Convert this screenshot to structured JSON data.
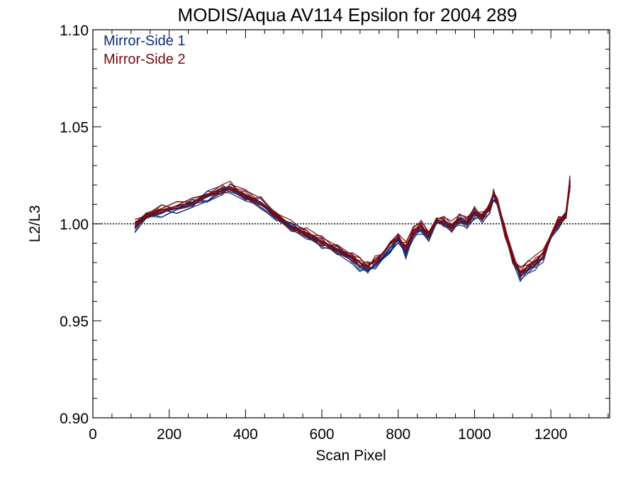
{
  "chart_data": {
    "type": "line",
    "title": "MODIS/Aqua AV114 Epsilon for 2004 289",
    "xlabel": "Scan Pixel",
    "ylabel": "L2/L3",
    "xlim": [
      0,
      1354
    ],
    "ylim": [
      0.9,
      1.1
    ],
    "x_ticks": [
      0,
      200,
      400,
      600,
      800,
      1000,
      1200
    ],
    "x_tick_labels": [
      "0",
      "200",
      "400",
      "600",
      "800",
      "1000",
      "1200"
    ],
    "y_ticks": [
      0.9,
      0.95,
      1.0,
      1.05,
      1.1
    ],
    "y_tick_labels": [
      "0.90",
      "0.95",
      "1.00",
      "1.05",
      "1.10"
    ],
    "reference_line": {
      "y": 1.0,
      "style": "dotted"
    },
    "legend_position": "top-left",
    "colors": {
      "mirror_side_1": "#0a2d78",
      "mirror_side_2": "#780a0f"
    },
    "series": [
      {
        "name": "Mirror-Side 1",
        "color": "#0a2d78",
        "x": [
          110,
          140,
          180,
          220,
          260,
          300,
          340,
          360,
          400,
          440,
          480,
          520,
          560,
          600,
          640,
          680,
          700,
          720,
          740,
          760,
          780,
          800,
          820,
          840,
          860,
          880,
          900,
          920,
          940,
          960,
          980,
          1000,
          1020,
          1040,
          1050,
          1060,
          1080,
          1100,
          1120,
          1140,
          1160,
          1180,
          1200,
          1220,
          1240,
          1250
        ],
        "values": [
          0.998,
          1.003,
          1.006,
          1.008,
          1.01,
          1.014,
          1.017,
          1.018,
          1.014,
          1.01,
          1.004,
          0.998,
          0.994,
          0.99,
          0.986,
          0.982,
          0.978,
          0.976,
          0.979,
          0.983,
          0.988,
          0.992,
          0.985,
          0.995,
          0.997,
          0.993,
          1.001,
          1.0,
          0.998,
          1.002,
          1.0,
          1.005,
          1.003,
          1.008,
          1.015,
          1.01,
          0.995,
          0.982,
          0.973,
          0.976,
          0.979,
          0.983,
          0.993,
          1.0,
          1.005,
          1.02
        ]
      },
      {
        "name": "Mirror-Side 2",
        "color": "#780a0f",
        "x": [
          110,
          140,
          180,
          220,
          260,
          300,
          340,
          360,
          400,
          440,
          480,
          520,
          560,
          600,
          640,
          680,
          700,
          720,
          740,
          760,
          780,
          800,
          820,
          840,
          860,
          880,
          900,
          920,
          940,
          960,
          980,
          1000,
          1020,
          1040,
          1050,
          1060,
          1080,
          1100,
          1120,
          1140,
          1160,
          1180,
          1200,
          1220,
          1240,
          1250
        ],
        "values": [
          1.0,
          1.004,
          1.007,
          1.009,
          1.011,
          1.015,
          1.018,
          1.019,
          1.015,
          1.011,
          1.005,
          0.999,
          0.995,
          0.991,
          0.987,
          0.983,
          0.98,
          0.978,
          0.981,
          0.985,
          0.99,
          0.993,
          0.988,
          0.996,
          0.999,
          0.995,
          1.002,
          1.001,
          0.999,
          1.003,
          1.001,
          1.006,
          1.004,
          1.009,
          1.016,
          1.011,
          0.996,
          0.983,
          0.975,
          0.978,
          0.981,
          0.985,
          0.994,
          1.001,
          1.006,
          1.022
        ]
      }
    ]
  }
}
